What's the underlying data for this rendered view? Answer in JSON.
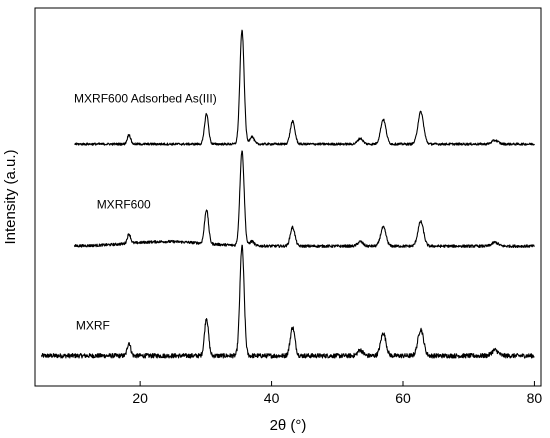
{
  "chart_data": {
    "type": "line",
    "xlabel": "2θ (°)",
    "ylabel": "Intensity (a.u.)",
    "xlim": [
      4,
      81
    ],
    "ylim": [
      0,
      1
    ],
    "x_ticks": [
      20,
      40,
      60,
      80
    ],
    "x_tick_labels": [
      "20",
      "40",
      "60",
      "80"
    ],
    "y_ticks_labeled": false,
    "grid": false,
    "legend": "none",
    "series": [
      {
        "name": "MXRF",
        "x_range": [
          5,
          80
        ],
        "baseline": 0.08,
        "noise_amplitude": 0.006,
        "hump": null,
        "peaks": [
          {
            "x": 18.3,
            "height": 0.035
          },
          {
            "x": 30.1,
            "height": 0.1
          },
          {
            "x": 35.5,
            "height": 0.29
          },
          {
            "x": 43.2,
            "height": 0.075
          },
          {
            "x": 53.5,
            "height": 0.015
          },
          {
            "x": 57.0,
            "height": 0.06
          },
          {
            "x": 62.7,
            "height": 0.07
          },
          {
            "x": 74.0,
            "height": 0.015
          }
        ]
      },
      {
        "name": "MXRF600",
        "x_range": [
          10,
          80
        ],
        "baseline": 0.37,
        "noise_amplitude": 0.0035,
        "hump": {
          "center": 24,
          "width": 8,
          "height": 0.012
        },
        "peaks": [
          {
            "x": 18.3,
            "height": 0.025
          },
          {
            "x": 30.1,
            "height": 0.09
          },
          {
            "x": 35.5,
            "height": 0.25
          },
          {
            "x": 37.0,
            "height": 0.012
          },
          {
            "x": 43.2,
            "height": 0.05
          },
          {
            "x": 53.5,
            "height": 0.012
          },
          {
            "x": 57.0,
            "height": 0.05
          },
          {
            "x": 62.7,
            "height": 0.065
          },
          {
            "x": 74.0,
            "height": 0.01
          }
        ]
      },
      {
        "name": "MXRF600 Adsorbed As(III)",
        "x_range": [
          10,
          80
        ],
        "baseline": 0.64,
        "noise_amplitude": 0.003,
        "hump": null,
        "peaks": [
          {
            "x": 18.3,
            "height": 0.025
          },
          {
            "x": 30.1,
            "height": 0.08
          },
          {
            "x": 35.5,
            "height": 0.3
          },
          {
            "x": 37.0,
            "height": 0.02
          },
          {
            "x": 43.2,
            "height": 0.06
          },
          {
            "x": 53.5,
            "height": 0.015
          },
          {
            "x": 57.0,
            "height": 0.065
          },
          {
            "x": 62.7,
            "height": 0.085
          },
          {
            "x": 74.0,
            "height": 0.01
          }
        ]
      }
    ],
    "annotations": [
      {
        "text": "MXRF600 Adsorbed As(III)",
        "x": 20.8,
        "y": 0.75
      },
      {
        "text": "MXRF600",
        "x": 17.5,
        "y": 0.47
      },
      {
        "text": "MXRF",
        "x": 12.8,
        "y": 0.15
      }
    ]
  }
}
